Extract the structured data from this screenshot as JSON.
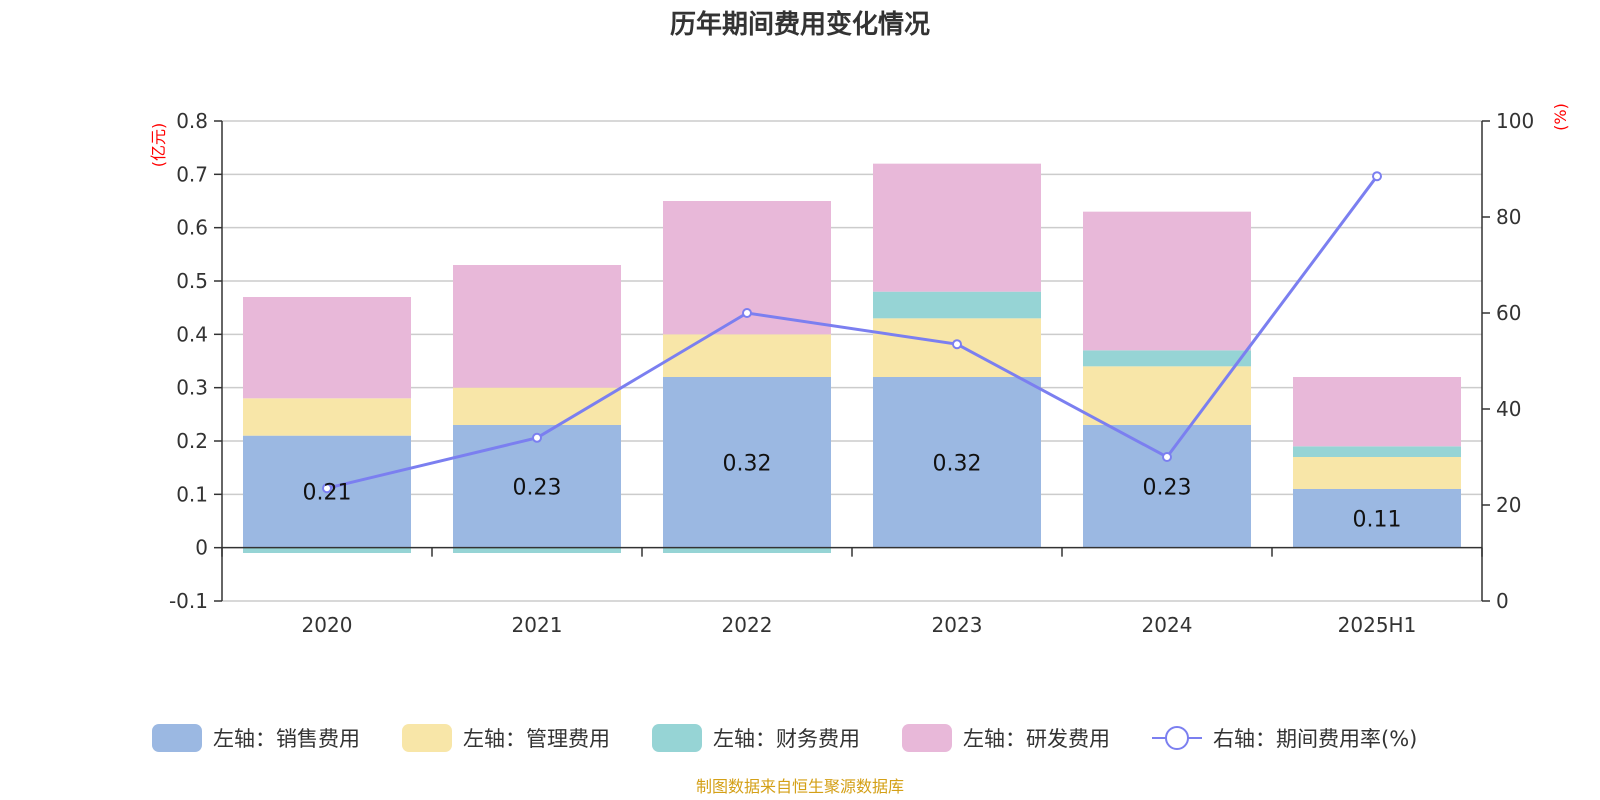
{
  "chart_data": {
    "type": "bar",
    "title": "历年期间费用变化情况",
    "left_unit": "(亿元)",
    "right_unit": "(%)",
    "categories": [
      "2020",
      "2021",
      "2022",
      "2023",
      "2024",
      "2025H1"
    ],
    "left_axis": {
      "ylim": [
        -0.1,
        0.8
      ],
      "ticks": [
        "-0.1",
        "0",
        "0.1",
        "0.2",
        "0.3",
        "0.4",
        "0.5",
        "0.6",
        "0.7",
        "0.8"
      ]
    },
    "right_axis": {
      "ylim": [
        0,
        100
      ],
      "ticks": [
        "0",
        "20",
        "40",
        "60",
        "80",
        "100"
      ]
    },
    "stacked_series": [
      {
        "name": "左轴：销售费用",
        "color": "#9bb8e2",
        "values": [
          0.21,
          0.23,
          0.32,
          0.32,
          0.23,
          0.11
        ],
        "labels": [
          "0.21",
          "0.23",
          "0.32",
          "0.32",
          "0.23",
          "0.11"
        ]
      },
      {
        "name": "左轴：管理费用",
        "color": "#f8e6a8",
        "values": [
          0.07,
          0.07,
          0.08,
          0.11,
          0.11,
          0.06
        ]
      },
      {
        "name": "左轴：财务费用",
        "color": "#96d4d5",
        "values": [
          -0.01,
          -0.01,
          -0.01,
          0.05,
          0.03,
          0.02
        ]
      },
      {
        "name": "左轴：研发费用",
        "color": "#e8b8d9",
        "values": [
          0.19,
          0.23,
          0.25,
          0.24,
          0.26,
          0.13
        ]
      }
    ],
    "line_series": {
      "name": "右轴：期间费用率(%)",
      "color": "#7b7ff0",
      "values": [
        23.5,
        34,
        60,
        53.5,
        30,
        88.5
      ]
    },
    "grid": true,
    "legend_position": "bottom",
    "source_note": "制图数据来自恒生聚源数据库"
  }
}
